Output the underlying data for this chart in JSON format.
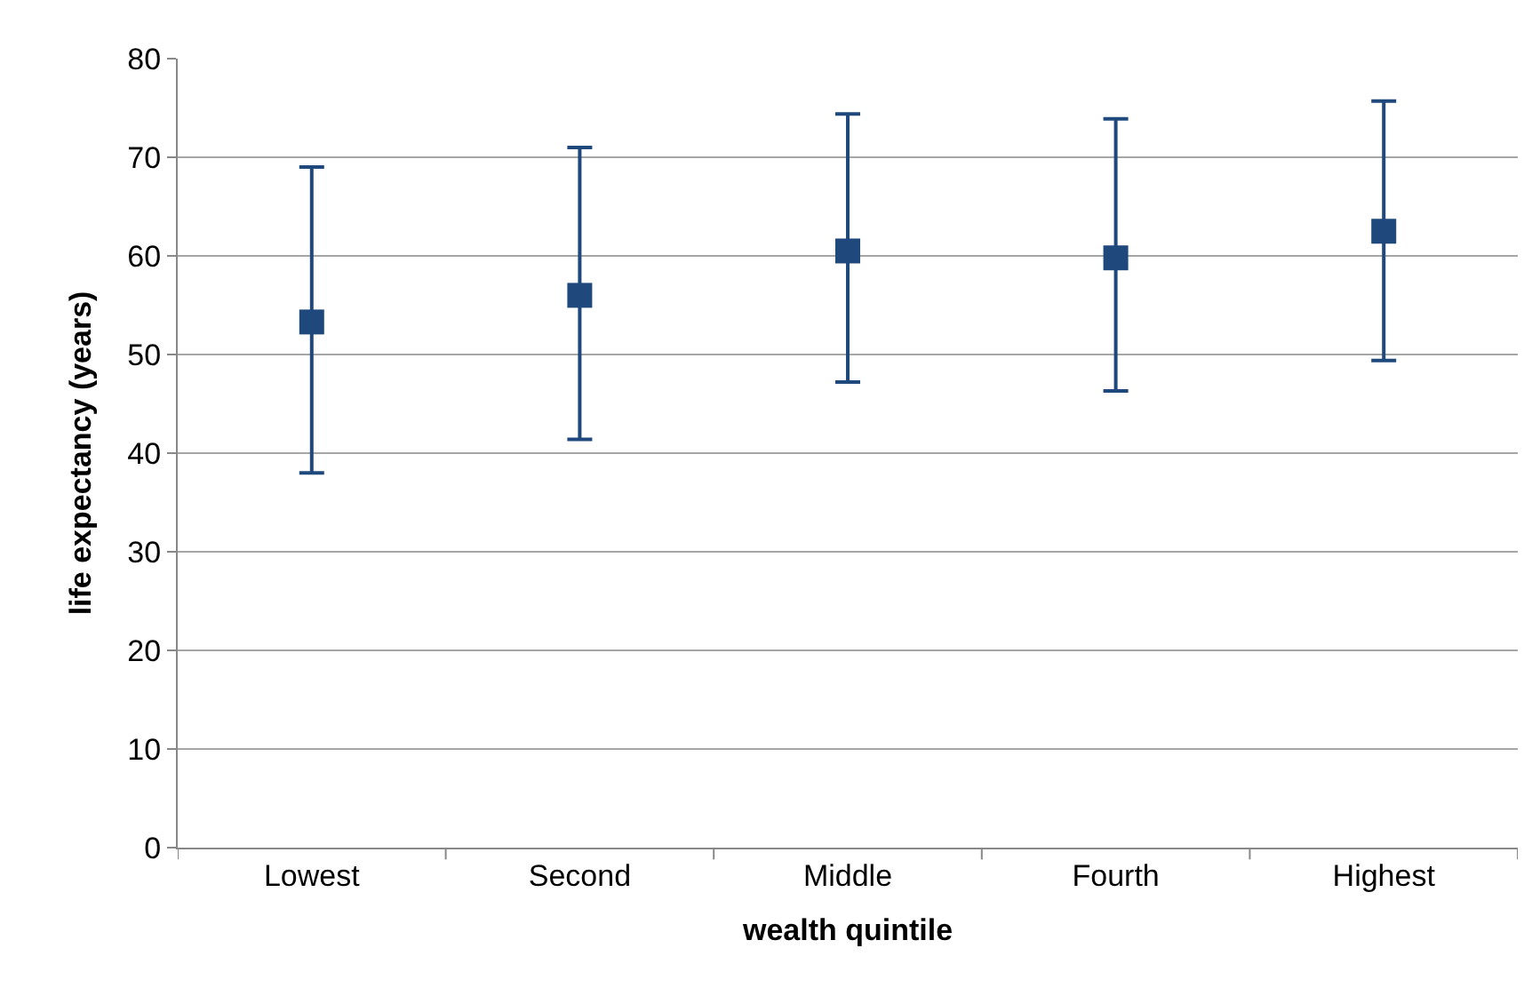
{
  "chart_data": {
    "type": "scatter",
    "xlabel": "wealth quintile",
    "ylabel": "life expectancy (years)",
    "categories": [
      "Lowest",
      "Second",
      "Middle",
      "Fourth",
      "Highest"
    ],
    "series": [
      {
        "color": "#1f497d",
        "values": [
          53.3,
          56.0,
          60.5,
          59.8,
          62.5
        ],
        "errors": [
          [
            38.0,
            69.0
          ],
          [
            41.4,
            71.0
          ],
          [
            47.2,
            74.4
          ],
          [
            46.3,
            73.9
          ],
          [
            49.4,
            75.7
          ]
        ]
      }
    ],
    "ylim": [
      0,
      80
    ],
    "yticks": [
      0,
      10,
      20,
      30,
      40,
      50,
      60,
      70,
      80
    ],
    "grid": "y",
    "legend": false,
    "marker": "square"
  }
}
